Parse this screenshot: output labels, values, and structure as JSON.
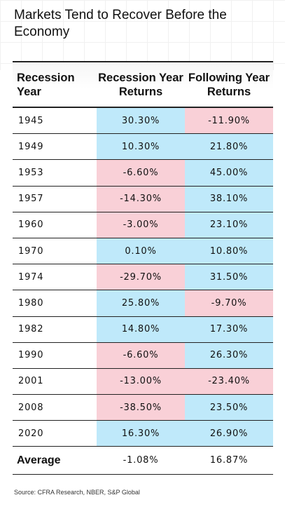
{
  "title": "Markets Tend to Recover Before the Economy",
  "chart_data": {
    "type": "table",
    "headers": [
      "Recession Year",
      "Recession Year Returns",
      "Following Year Returns"
    ],
    "rows": [
      {
        "year": "1945",
        "recession": "30.30%",
        "following": "-11.90%",
        "r": 30.3,
        "f": -11.9
      },
      {
        "year": "1949",
        "recession": "10.30%",
        "following": "21.80%",
        "r": 10.3,
        "f": 21.8
      },
      {
        "year": "1953",
        "recession": "-6.60%",
        "following": "45.00%",
        "r": -6.6,
        "f": 45.0
      },
      {
        "year": "1957",
        "recession": "-14.30%",
        "following": "38.10%",
        "r": -14.3,
        "f": 38.1
      },
      {
        "year": "1960",
        "recession": "-3.00%",
        "following": "23.10%",
        "r": -3.0,
        "f": 23.1
      },
      {
        "year": "1970",
        "recession": "0.10%",
        "following": "10.80%",
        "r": 0.1,
        "f": 10.8
      },
      {
        "year": "1974",
        "recession": "-29.70%",
        "following": "31.50%",
        "r": -29.7,
        "f": 31.5
      },
      {
        "year": "1980",
        "recession": "25.80%",
        "following": "-9.70%",
        "r": 25.8,
        "f": -9.7
      },
      {
        "year": "1982",
        "recession": "14.80%",
        "following": "17.30%",
        "r": 14.8,
        "f": 17.3
      },
      {
        "year": "1990",
        "recession": "-6.60%",
        "following": "26.30%",
        "r": -6.6,
        "f": 26.3
      },
      {
        "year": "2001",
        "recession": "-13.00%",
        "following": "-23.40%",
        "r": -13.0,
        "f": -23.4
      },
      {
        "year": "2008",
        "recession": "-38.50%",
        "following": "23.50%",
        "r": -38.5,
        "f": 23.5
      },
      {
        "year": "2020",
        "recession": "16.30%",
        "following": "26.90%",
        "r": 16.3,
        "f": 26.9
      }
    ],
    "average": {
      "label": "Average",
      "recession": "-1.08%",
      "following": "16.87%"
    },
    "colors": {
      "positive": "#bfe9fa",
      "negative": "#f9d0d7"
    }
  },
  "source": "Source: CFRA Research, NBER, S&P Global"
}
